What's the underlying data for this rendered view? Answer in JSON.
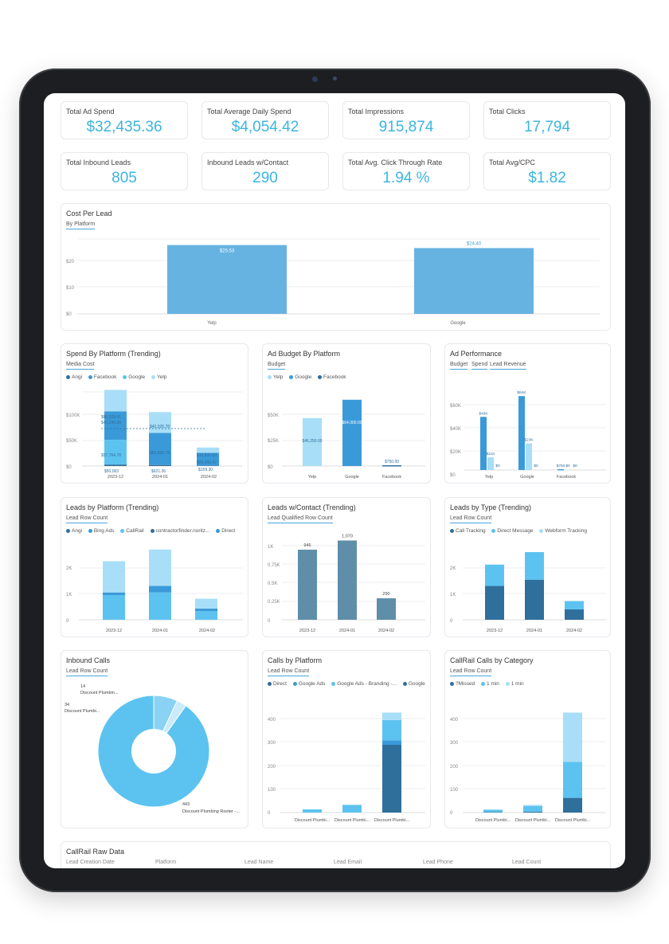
{
  "kpis": [
    {
      "label": "Total Ad Spend",
      "value": "$32,435.36"
    },
    {
      "label": "Total Average Daily Spend",
      "value": "$4,054.42"
    },
    {
      "label": "Total Impressions",
      "value": "915,874"
    },
    {
      "label": "Total Clicks",
      "value": "17,794"
    },
    {
      "label": "Total Inbound Leads",
      "value": "805"
    },
    {
      "label": "Inbound Leads w/Contact",
      "value": "290"
    },
    {
      "label": "Total Avg. Click Through Rate",
      "value": "1.94 %"
    },
    {
      "label": "Total Avg/CPC",
      "value": "$1.82"
    }
  ],
  "cost_per_lead": {
    "title": "Cost Per Lead",
    "subtitle": "By Platform",
    "yticks": [
      "$20",
      "$10",
      "$0"
    ],
    "chart_data": {
      "type": "bar",
      "categories": [
        "Yelp",
        "Google"
      ],
      "values": [
        25.53,
        24.4
      ],
      "value_labels": [
        "$25.53",
        "$24.40"
      ],
      "ylim": [
        0,
        30
      ]
    }
  },
  "spend_trending": {
    "title": "Spend By Platform (Trending)",
    "subtitle": "Media Cost",
    "legend": [
      "Angi",
      "Facebook",
      "Google",
      "Yelp"
    ],
    "yticks": [
      "$100K",
      "$50K",
      "$0"
    ],
    "labels": [
      "$80,328.41",
      "$43,246.99",
      "$57,764.78",
      "$50,063",
      "$42,025.78",
      "$63,969.78",
      "$621.26",
      "$10,820.59",
      "$25,455.47",
      "$159.30"
    ],
    "chart_data": {
      "type": "bar",
      "categories": [
        "2023-12",
        "2024-01",
        "2024-02"
      ],
      "series": [
        {
          "name": "Angi",
          "values": [
            3000,
            2500,
            1000
          ]
        },
        {
          "name": "Facebook",
          "values": [
            50063,
            621.26,
            159.3
          ]
        },
        {
          "name": "Google",
          "values": [
            57764.78,
            63969.78,
            25455.47
          ]
        },
        {
          "name": "Yelp",
          "values": [
            43246.99,
            42025.78,
            10820.59
          ]
        }
      ],
      "ylim": [
        0,
        150000
      ]
    }
  },
  "ad_budget": {
    "title": "Ad Budget By Platform",
    "subtitle": "Budget",
    "legend": [
      "Yelp",
      "Google",
      "Facebook"
    ],
    "yticks": [
      "$50K",
      "$25K",
      "$0"
    ],
    "chart_data": {
      "type": "bar",
      "categories": [
        "Yelp",
        "Google",
        "Facebook"
      ],
      "values": [
        46250,
        64000,
        750
      ],
      "value_labels": [
        "$46,250.00",
        "$64,000.00",
        "$750.00"
      ],
      "ylim": [
        0,
        75000
      ]
    }
  },
  "ad_performance": {
    "title": "Ad Performance",
    "tabs": [
      "Budget",
      "Spend",
      "Lead Revenue"
    ],
    "yticks": [
      "$60K",
      "$40K",
      "$20K",
      "$0"
    ],
    "chart_data": {
      "type": "bar",
      "categories": [
        "Yelp",
        "Google",
        "Facebook"
      ],
      "series": [
        {
          "name": "Budget",
          "values": [
            46000,
            64000,
            750
          ],
          "labels": [
            "$46K",
            "$64K",
            "$750"
          ]
        },
        {
          "name": "Spend",
          "values": [
            11000,
            23000,
            0
          ],
          "labels": [
            "$11K",
            "$23K",
            "$0"
          ]
        },
        {
          "name": "Lead Revenue",
          "values": [
            0,
            0,
            0
          ],
          "labels": [
            "$0",
            "$0",
            "$0"
          ]
        }
      ],
      "ylim": [
        0,
        70000
      ]
    }
  },
  "leads_platform": {
    "title": "Leads by Platform (Trending)",
    "subtitle": "Lead Row Count",
    "legend": [
      "Angi",
      "Bing Ads",
      "CallRail",
      "contractorfinder.noritz...",
      "Direct"
    ],
    "yticks": [
      "2K",
      "1K",
      "0"
    ],
    "chart_data": {
      "type": "bar",
      "categories": [
        "2023-12",
        "2024-01",
        "2024-02"
      ],
      "series": [
        {
          "name": "Direct",
          "values": [
            950,
            1050,
            330
          ]
        },
        {
          "name": "CallRail",
          "values": [
            100,
            250,
            100
          ]
        },
        {
          "name": "Angi",
          "values": [
            1200,
            1400,
            380
          ]
        }
      ],
      "ylim": [
        0,
        3000
      ]
    }
  },
  "leads_contact": {
    "title": "Leads w/Contact (Trending)",
    "subtitle": "Lead Qualified Row Count",
    "yticks": [
      "1K",
      "0.75K",
      "0.5K",
      "0.25K",
      "0"
    ],
    "chart_data": {
      "type": "bar",
      "categories": [
        "2023-12",
        "2024-01",
        "2024-02"
      ],
      "values": [
        946,
        1070,
        290
      ],
      "value_labels": [
        "946",
        "1,070",
        "290"
      ],
      "ylim": [
        0,
        1150
      ]
    }
  },
  "leads_type": {
    "title": "Leads by Type (Trending)",
    "subtitle": "Lead Row Count",
    "legend": [
      "Call Tracking",
      "Direct Message",
      "Webform Tracking"
    ],
    "yticks": [
      "2K",
      "1K",
      "0"
    ],
    "chart_data": {
      "type": "bar",
      "categories": [
        "2023-12",
        "2024-01",
        "2024-02"
      ],
      "series": [
        {
          "name": "Call Tracking",
          "values": [
            1300,
            1540,
            400
          ]
        },
        {
          "name": "Direct Message",
          "values": [
            820,
            1060,
            320
          ]
        }
      ],
      "ylim": [
        0,
        3000
      ]
    }
  },
  "inbound_calls": {
    "title": "Inbound Calls",
    "subtitle": "Lead Row Count",
    "chart_data": {
      "type": "pie",
      "labels": [
        "Discount Plumbing Rooter -...",
        "Discount Plumbi...",
        "Discount Plumbin..."
      ],
      "values": [
        443,
        34,
        14
      ],
      "value_labels": [
        "443",
        "34",
        "14"
      ]
    }
  },
  "calls_platform": {
    "title": "Calls by Platform",
    "subtitle": "Lead Row Count",
    "legend": [
      "Direct",
      "Google Ads",
      "Google Ads - Branding -...",
      "Google"
    ],
    "yticks": [
      "400",
      "300",
      "200",
      "100",
      "0"
    ],
    "chart_data": {
      "type": "bar",
      "categories": [
        "Discount Plumbi...",
        "Discount Plumbi...",
        "Discount Plumbi..."
      ],
      "series": [
        {
          "name": "Google",
          "values": [
            0,
            0,
            300
          ]
        },
        {
          "name": "Google Ads - Branding -...",
          "values": [
            0,
            0,
            20
          ]
        },
        {
          "name": "Google Ads",
          "values": [
            14,
            34,
            90
          ]
        },
        {
          "name": "Direct",
          "values": [
            0,
            0,
            33
          ]
        }
      ],
      "ylim": [
        0,
        480
      ]
    }
  },
  "callrail_category": {
    "title": "CallRail Calls by Category",
    "subtitle": "Lead Row Count",
    "legend": [
      "?Missed",
      "1 min",
      "1 min"
    ],
    "yticks": [
      "400",
      "300",
      "200",
      "100",
      "0"
    ],
    "chart_data": {
      "type": "bar",
      "categories": [
        "Discount Plumbi...",
        "Discount Plumbi...",
        "Discount Plumbi..."
      ],
      "series": [
        {
          "name": "?Missed",
          "values": [
            2,
            4,
            65
          ]
        },
        {
          "name": "1 min",
          "values": [
            10,
            25,
            160
          ]
        },
        {
          "name": "1 min",
          "values": [
            2,
            5,
            218
          ]
        }
      ],
      "ylim": [
        0,
        480
      ]
    }
  },
  "raw_data": {
    "title": "CallRail Raw Data",
    "columns": [
      "Lead Creation Date",
      "Platform",
      "Lead Name",
      "Lead Email",
      "Lead Phone",
      "Lead Count"
    ]
  },
  "colors": {
    "dark": "#2f6f9c",
    "mid": "#3a9ad9",
    "light": "#5cc3f0",
    "pale": "#a8def7",
    "teal": "#5f8ea9"
  }
}
